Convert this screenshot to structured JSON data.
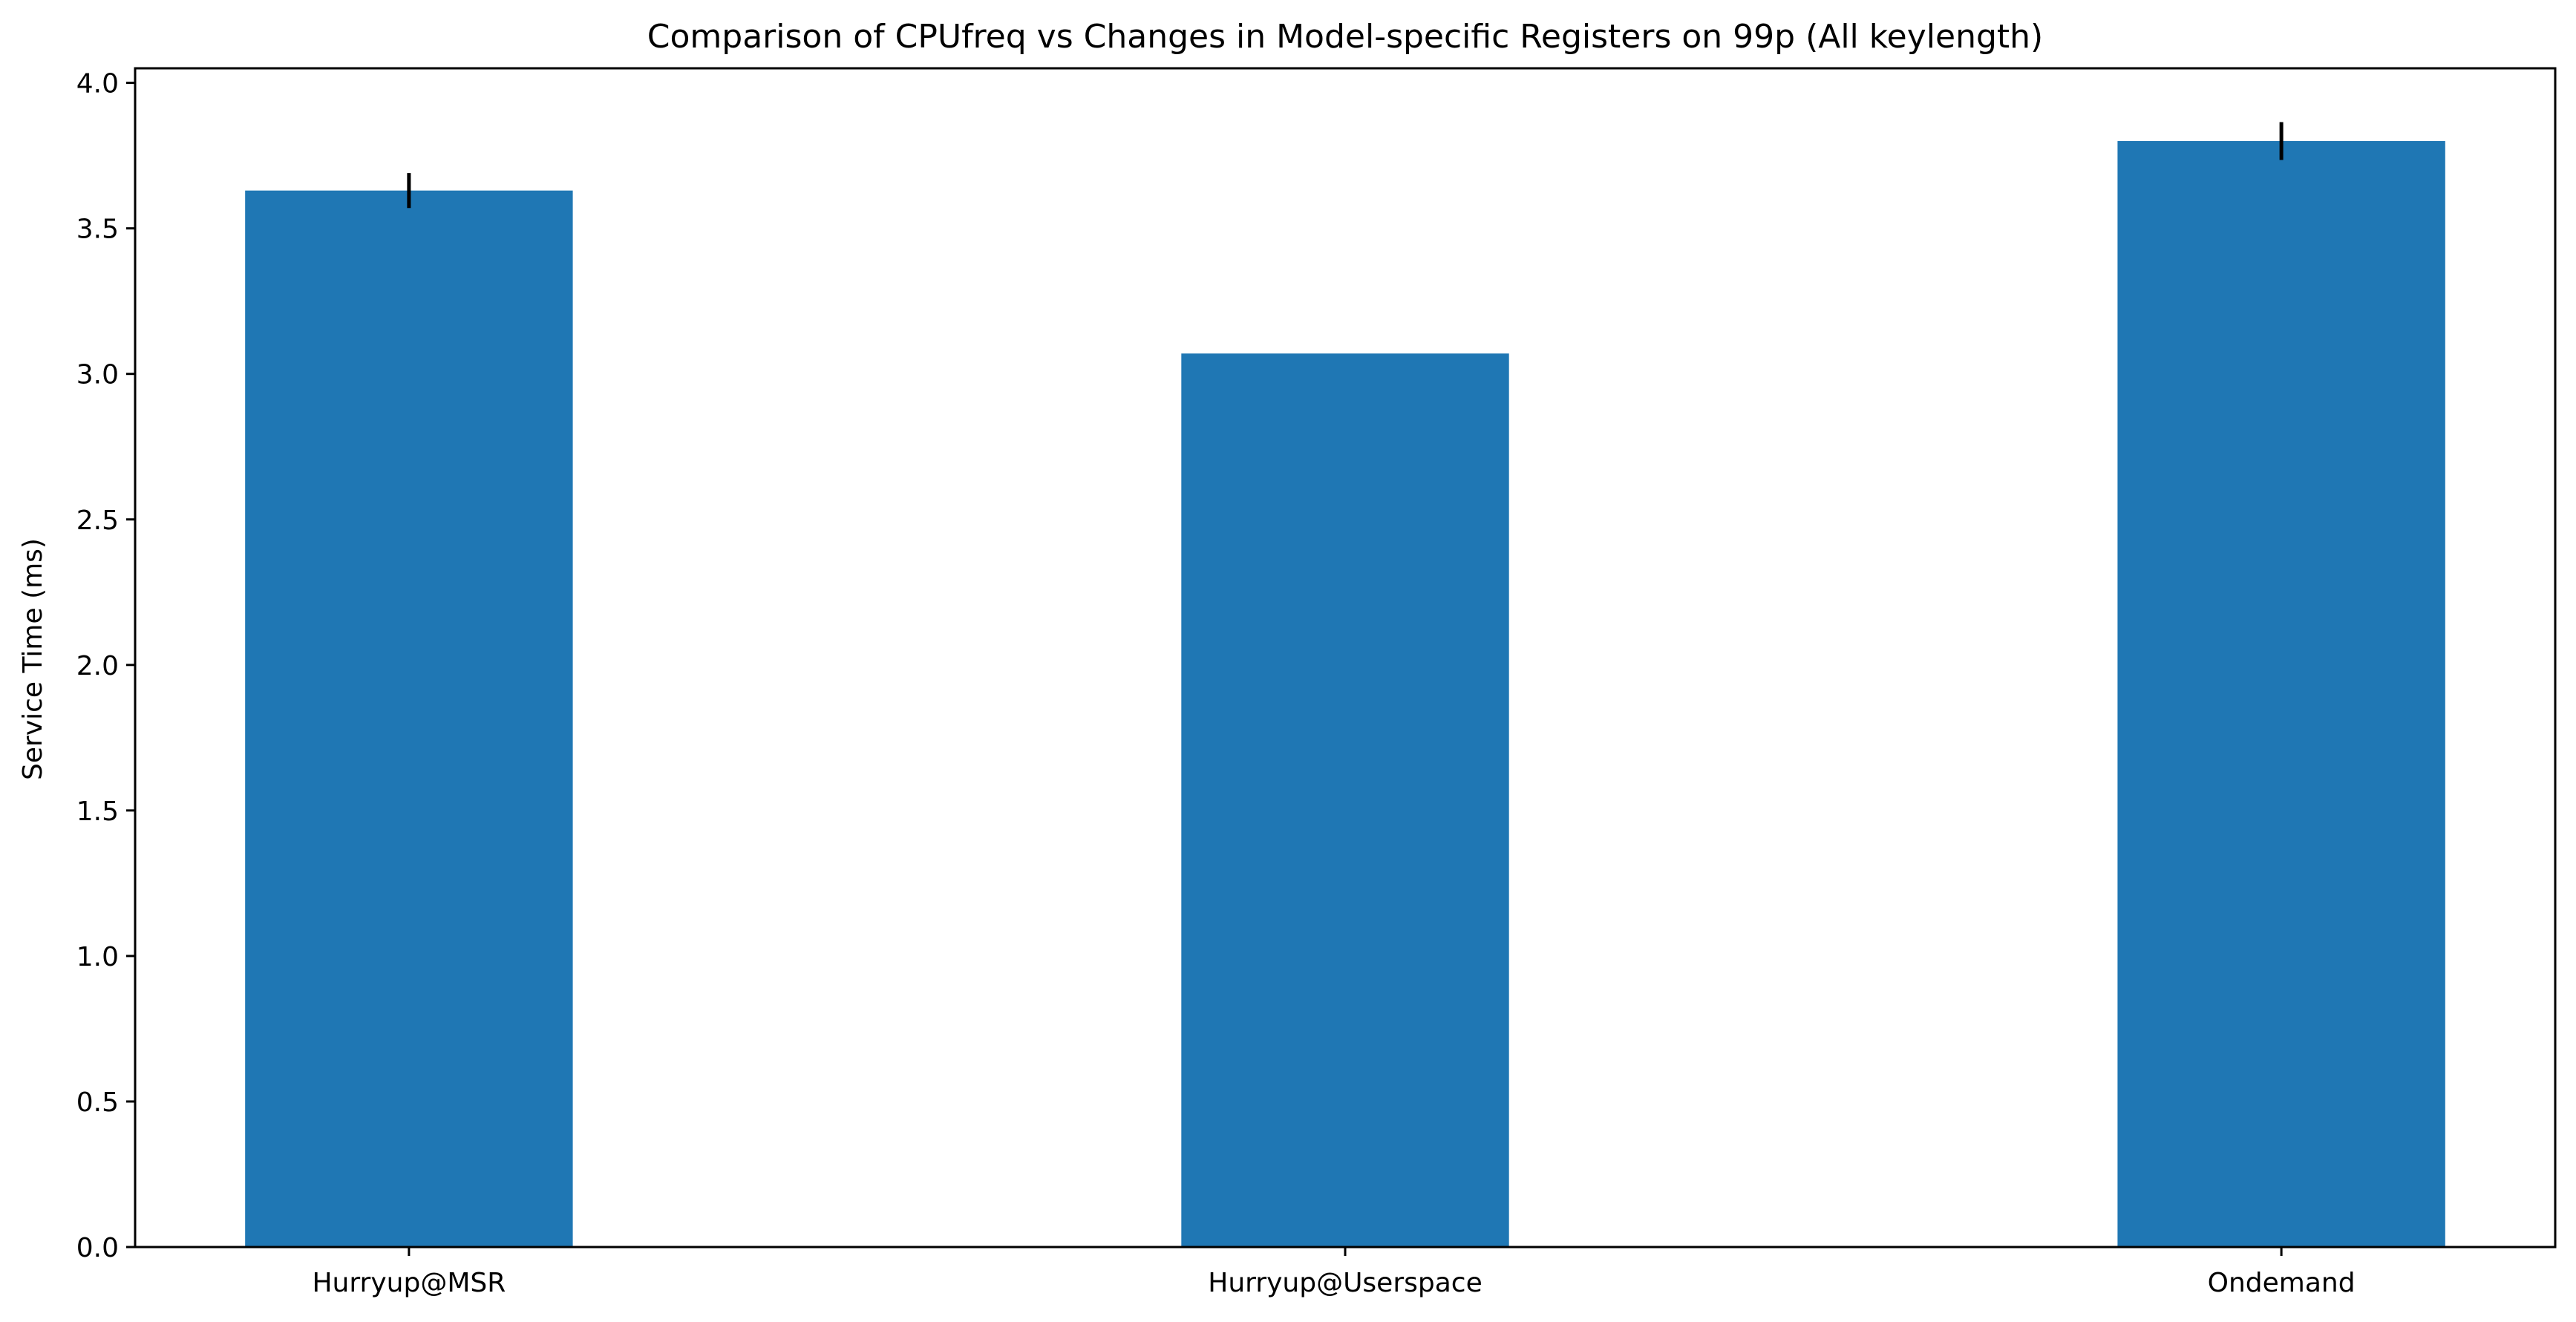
{
  "chart_data": {
    "type": "bar",
    "title": "Comparison of CPUfreq vs Changes in Model-specific Registers on 99p (All keylength)",
    "xlabel": "",
    "ylabel": "Service Time (ms)",
    "categories": [
      "Hurryup@MSR",
      "Hurryup@Userspace",
      "Ondemand"
    ],
    "values": [
      3.63,
      3.07,
      3.8
    ],
    "errors": [
      0.06,
      0.0,
      0.065
    ],
    "ylim": [
      0,
      4.05
    ],
    "yticks": [
      0.0,
      0.5,
      1.0,
      1.5,
      2.0,
      2.5,
      3.0,
      3.5,
      4.0
    ],
    "ytick_labels": [
      "0.0",
      "0.5",
      "1.0",
      "1.5",
      "2.0",
      "2.5",
      "3.0",
      "3.5",
      "4.0"
    ],
    "bar_color": "#1f77b4",
    "error_color": "#000000",
    "grid": false,
    "legend": "none"
  }
}
